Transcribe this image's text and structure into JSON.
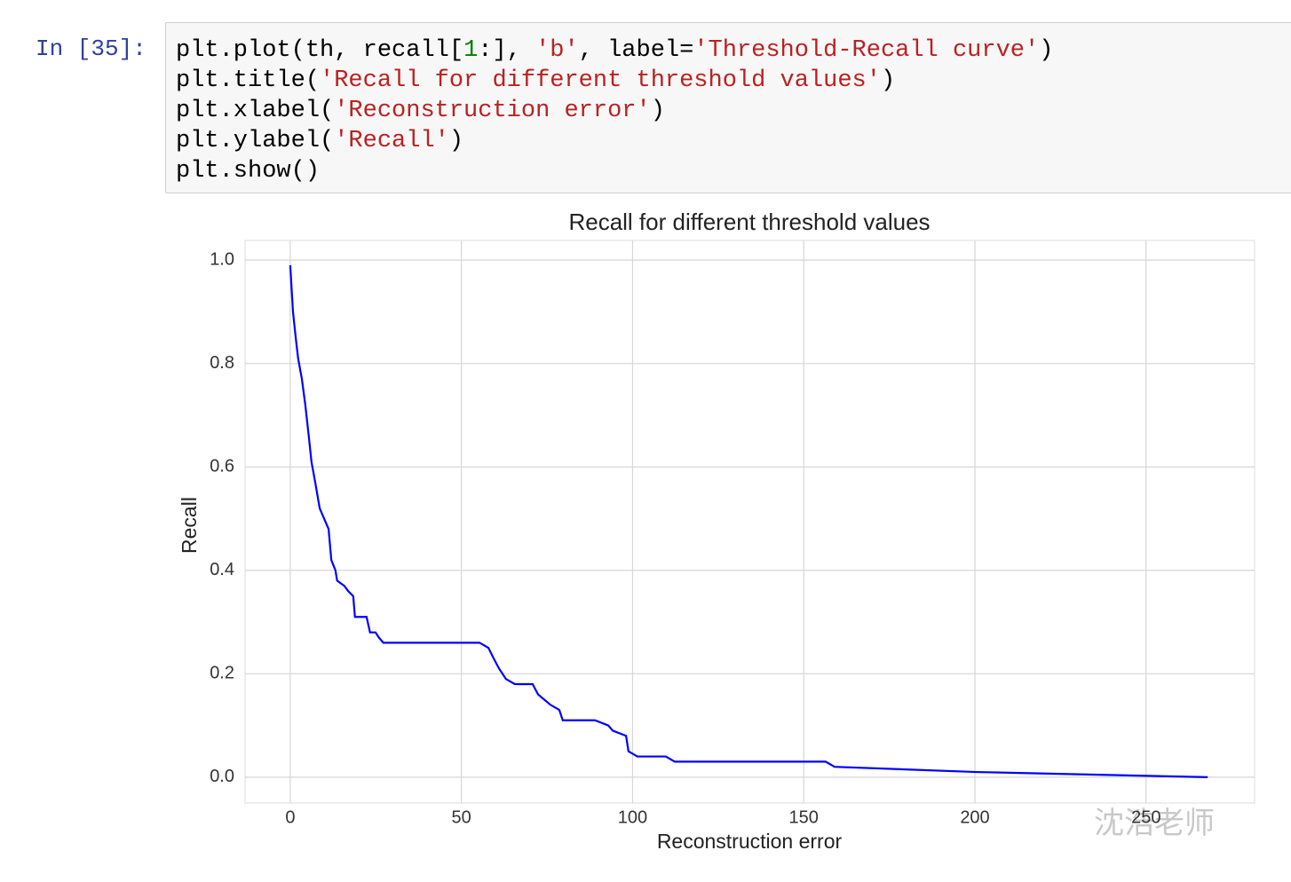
{
  "prompt": "In [35]:",
  "code": {
    "lines": [
      [
        {
          "text": "plt.plot(th, recall[",
          "color": "#000000"
        },
        {
          "text": "1",
          "color": "#008000"
        },
        {
          "text": ":], ",
          "color": "#000000"
        },
        {
          "text": "'b'",
          "color": "#ba2121"
        },
        {
          "text": ", label=",
          "color": "#000000"
        },
        {
          "text": "'Threshold-Recall curve'",
          "color": "#ba2121"
        },
        {
          "text": ")",
          "color": "#000000"
        }
      ],
      [
        {
          "text": "plt.title(",
          "color": "#000000"
        },
        {
          "text": "'Recall for different threshold values'",
          "color": "#ba2121"
        },
        {
          "text": ")",
          "color": "#000000"
        }
      ],
      [
        {
          "text": "plt.xlabel(",
          "color": "#000000"
        },
        {
          "text": "'Reconstruction error'",
          "color": "#ba2121"
        },
        {
          "text": ")",
          "color": "#000000"
        }
      ],
      [
        {
          "text": "plt.ylabel(",
          "color": "#000000"
        },
        {
          "text": "'Recall'",
          "color": "#ba2121"
        },
        {
          "text": ")",
          "color": "#000000"
        }
      ],
      [
        {
          "text": "plt.show()",
          "color": "#000000"
        }
      ]
    ]
  },
  "chart_data": {
    "type": "line",
    "title": "Recall for different threshold values",
    "x_label": "Reconstruction error",
    "y_label": "Recall",
    "x": [
      0,
      0.8,
      1.6,
      2.3,
      3.4,
      4.4,
      5.4,
      6.2,
      7.3,
      8.6,
      9.9,
      11.2,
      12,
      13.2,
      13.7,
      15.8,
      16.9,
      18.4,
      18.9,
      22.3,
      23.3,
      24.9,
      25.9,
      27.2,
      55.3,
      57.9,
      59.4,
      61,
      63,
      65.6,
      70.8,
      72.4,
      76,
      78.6,
      79.6,
      89,
      92.9,
      94.2,
      98.1,
      98.8,
      101.4,
      109.7,
      112.3,
      156.4,
      159,
      200.5,
      268
    ],
    "values": [
      0.99,
      0.9,
      0.85,
      0.81,
      0.77,
      0.72,
      0.66,
      0.61,
      0.57,
      0.52,
      0.5,
      0.48,
      0.42,
      0.4,
      0.38,
      0.37,
      0.36,
      0.35,
      0.31,
      0.31,
      0.28,
      0.28,
      0.27,
      0.26,
      0.26,
      0.25,
      0.23,
      0.21,
      0.19,
      0.18,
      0.18,
      0.16,
      0.14,
      0.13,
      0.11,
      0.11,
      0.1,
      0.09,
      0.08,
      0.05,
      0.04,
      0.04,
      0.03,
      0.03,
      0.02,
      0.01,
      0
    ],
    "color": "#0000ff",
    "xlim": [
      -13.2,
      281.7
    ],
    "xticks": [
      0,
      50,
      100,
      150,
      200,
      250
    ],
    "ylim": [
      -0.05,
      1.038
    ],
    "yticks": [
      {
        "value": 0,
        "label": "0.0"
      },
      0.2,
      0.4,
      0.6,
      0.8,
      {
        "value": 1,
        "label": "1.0"
      }
    ],
    "grid": true
  },
  "watermark": "沈浩老师"
}
